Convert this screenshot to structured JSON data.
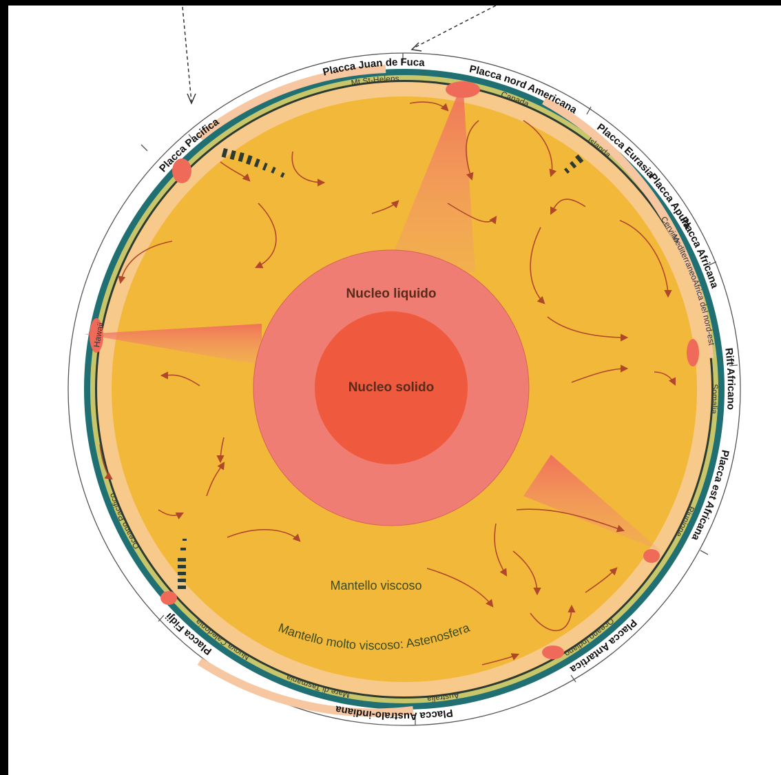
{
  "colors": {
    "background": "#000000",
    "paper": "#ffffff",
    "mantle": "#f2b83a",
    "astheno": "#f7c98a",
    "crust_ocean": "#1f6f73",
    "crust_green": "#c7c66a",
    "continent": "#f6c7a0",
    "outer_core": "#f07d74",
    "inner_core": "#ef5a3e",
    "plume": "#f39a80",
    "arrow": "#b0472a"
  },
  "core": {
    "outer_label": "Nucleo liquido",
    "inner_label": "Nucleo solido"
  },
  "mantle": {
    "viscous_label": "Mantello viscoso",
    "astheno_label": "Mantello molto viscoso: Astenosfera"
  },
  "plates": [
    "Placca nord Americana",
    "Placca Eurasia",
    "Placca Apula",
    "Placca Africana",
    "Rift Africano",
    "Placca est Africana",
    "Placca Antartica",
    "Placca Australo-indiana",
    "Placca Fidji",
    "Placca Pacifica",
    "Placca Juan de Fuca"
  ],
  "places": [
    "Canada",
    "Islanda",
    "Cervino",
    "Mediterraneo",
    "Africa del nord-est",
    "Somalia",
    "Riunione",
    "Oceano Indiano",
    "Australia",
    "Mare di Tasmania",
    "Nuova Caledonia",
    "Oceano Pacifico",
    "Hawaii",
    "Mt St-Helens"
  ]
}
